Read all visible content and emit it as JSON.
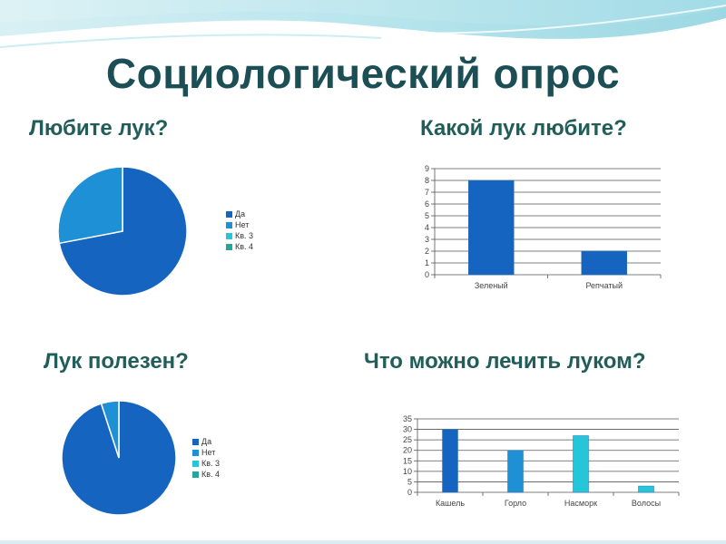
{
  "title": "Социологический опрос",
  "colors": {
    "title": "#1b4f55",
    "question": "#215e5a",
    "series1": "#1565c0",
    "series2": "#1e90d6",
    "series3": "#26c6da",
    "series4": "#26a69a"
  },
  "chart_data": [
    {
      "type": "pie",
      "title": "Любите лук?",
      "categories": [
        "Да",
        "Нет",
        "Кв. 3",
        "Кв. 4"
      ],
      "values": [
        72,
        28,
        0,
        0
      ],
      "legend": "right"
    },
    {
      "type": "bar",
      "title": "Какой лук любите?",
      "categories": [
        "Зеленый",
        "Репчатый"
      ],
      "values": [
        8,
        2
      ],
      "ylim": [
        0,
        9
      ],
      "yticks": [
        0,
        1,
        2,
        3,
        4,
        5,
        6,
        7,
        8,
        9
      ],
      "grid": true
    },
    {
      "type": "pie",
      "title": "Лук полезен?",
      "categories": [
        "Да",
        "Нет",
        "Кв. 3",
        "Кв. 4"
      ],
      "values": [
        95,
        5,
        0,
        0
      ],
      "legend": "right"
    },
    {
      "type": "bar",
      "title": "Что можно лечить луком?",
      "categories": [
        "Кашель",
        "Горло",
        "Насморк",
        "Волосы"
      ],
      "values": [
        30,
        20,
        27,
        3
      ],
      "ylim": [
        0,
        35
      ],
      "yticks": [
        0,
        5,
        10,
        15,
        20,
        25,
        30,
        35
      ],
      "grid": true
    }
  ]
}
